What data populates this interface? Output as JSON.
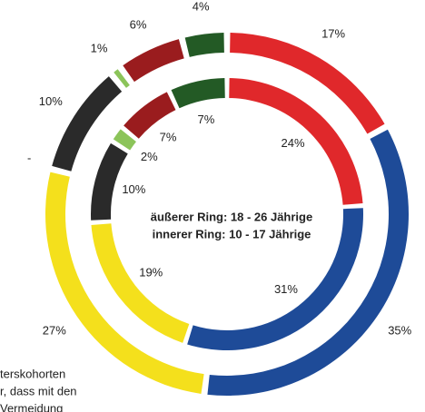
{
  "chart_data": {
    "type": "donut",
    "colors": [
      "#e0282b",
      "#1e4b98",
      "#f4e01c",
      "#2a2a2a",
      "#8cc45a",
      "#9a1c1e",
      "#235a25"
    ],
    "series": [
      {
        "name": "äußerer Ring: 18 - 26 Jährige",
        "values": [
          17,
          35,
          27,
          10,
          1,
          6,
          4
        ],
        "value_labels": [
          "17%",
          "35%",
          "27%",
          "10%",
          "1%",
          "6%",
          "4%"
        ]
      },
      {
        "name": "innerer Ring: 10 - 17 Jährige",
        "values": [
          24,
          31,
          19,
          10,
          2,
          7,
          7
        ],
        "value_labels": [
          "24%",
          "31%",
          "19%",
          "10%",
          "2%",
          "7%",
          "7%"
        ]
      }
    ],
    "annotations": [
      "-",
      "terskohorten",
      "r, dass mit den",
      "Vermeidung"
    ]
  }
}
